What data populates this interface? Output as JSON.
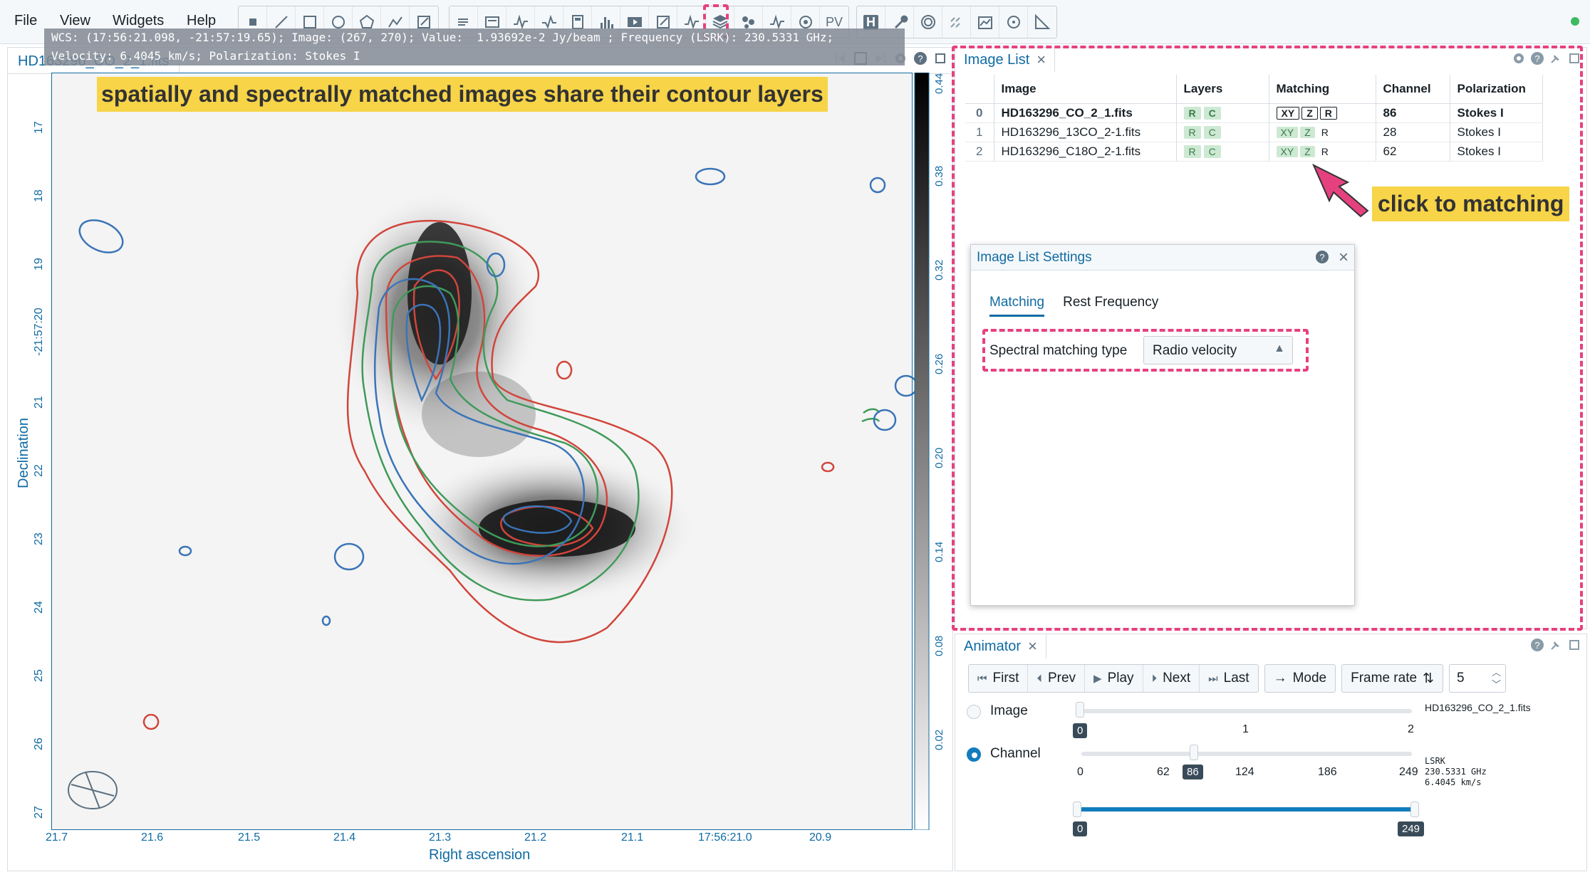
{
  "menu": {
    "file": "File",
    "view": "View",
    "widgets": "Widgets",
    "help": "Help"
  },
  "toolbar": {
    "pv_label": "PV",
    "h_label": "H",
    "accent": "#e6417f"
  },
  "image_view": {
    "tab_title": "HD163296_CO_2_1.fits",
    "cursor_info_line1": "WCS: (17:56:21.098, -21:57:19.65); Image: (267, 270); Value:  1.93692e-2 Jy/beam ; Frequency (LSRK): 230.5331 GHz;",
    "cursor_info_line2": "Velocity: 6.4045 km/s; Polarization: Stokes I",
    "annotation": "spatially and spectrally matched images share their contour layers",
    "xlabel": "Right ascension",
    "ylabel": "Declination",
    "xticks": [
      "21.7",
      "21.6",
      "21.5",
      "21.4",
      "21.3",
      "21.2",
      "21.1",
      "17:56:21.0",
      "20.9"
    ],
    "yticks": [
      "17",
      "18",
      "19",
      "-21:57:20",
      "21",
      "22",
      "23",
      "24",
      "25",
      "26",
      "27"
    ],
    "colorbar_ticks": [
      "0.44",
      "0.38",
      "0.32",
      "0.26",
      "0.20",
      "0.14",
      "0.08",
      "0.02"
    ]
  },
  "image_list": {
    "tab_title": "Image List",
    "columns": [
      "Image",
      "Layers",
      "Matching",
      "Channel",
      "Polarization"
    ],
    "rows": [
      {
        "index": "0",
        "image": "HD163296_CO_2_1.fits",
        "channel": "86",
        "polarization": "Stokes I"
      },
      {
        "index": "1",
        "image": "HD163296_13CO_2-1.fits",
        "channel": "28",
        "polarization": "Stokes I"
      },
      {
        "index": "2",
        "image": "HD163296_C18O_2-1.fits",
        "channel": "62",
        "polarization": "Stokes I"
      }
    ],
    "layer_tags": {
      "r": "R",
      "c": "C"
    },
    "match_tags": {
      "xy": "XY",
      "z": "Z",
      "r": "R"
    },
    "callout": "click to matching"
  },
  "settings_dialog": {
    "title": "Image List Settings",
    "tab_matching": "Matching",
    "tab_rest": "Rest Frequency",
    "spectral_label": "Spectral matching type",
    "spectral_value": "Radio velocity"
  },
  "animator": {
    "tab_title": "Animator",
    "first": "First",
    "prev": "Prev",
    "play": "Play",
    "next": "Next",
    "last": "Last",
    "mode": "Mode",
    "frame_rate_label": "Frame rate",
    "frame_rate_value": "5",
    "image_label": "Image",
    "channel_label": "Channel",
    "image_slider": {
      "value": "0",
      "ticks": [
        "1",
        "2"
      ],
      "file": "HD163296_CO_2_1.fits"
    },
    "channel_slider": {
      "value": "86",
      "ticks": [
        "0",
        "62",
        "124",
        "186",
        "249"
      ]
    },
    "channel_info": "LSRK\n230.5331 GHz\n6.4045 km/s",
    "range_slider": {
      "min": "0",
      "max": "249"
    }
  }
}
